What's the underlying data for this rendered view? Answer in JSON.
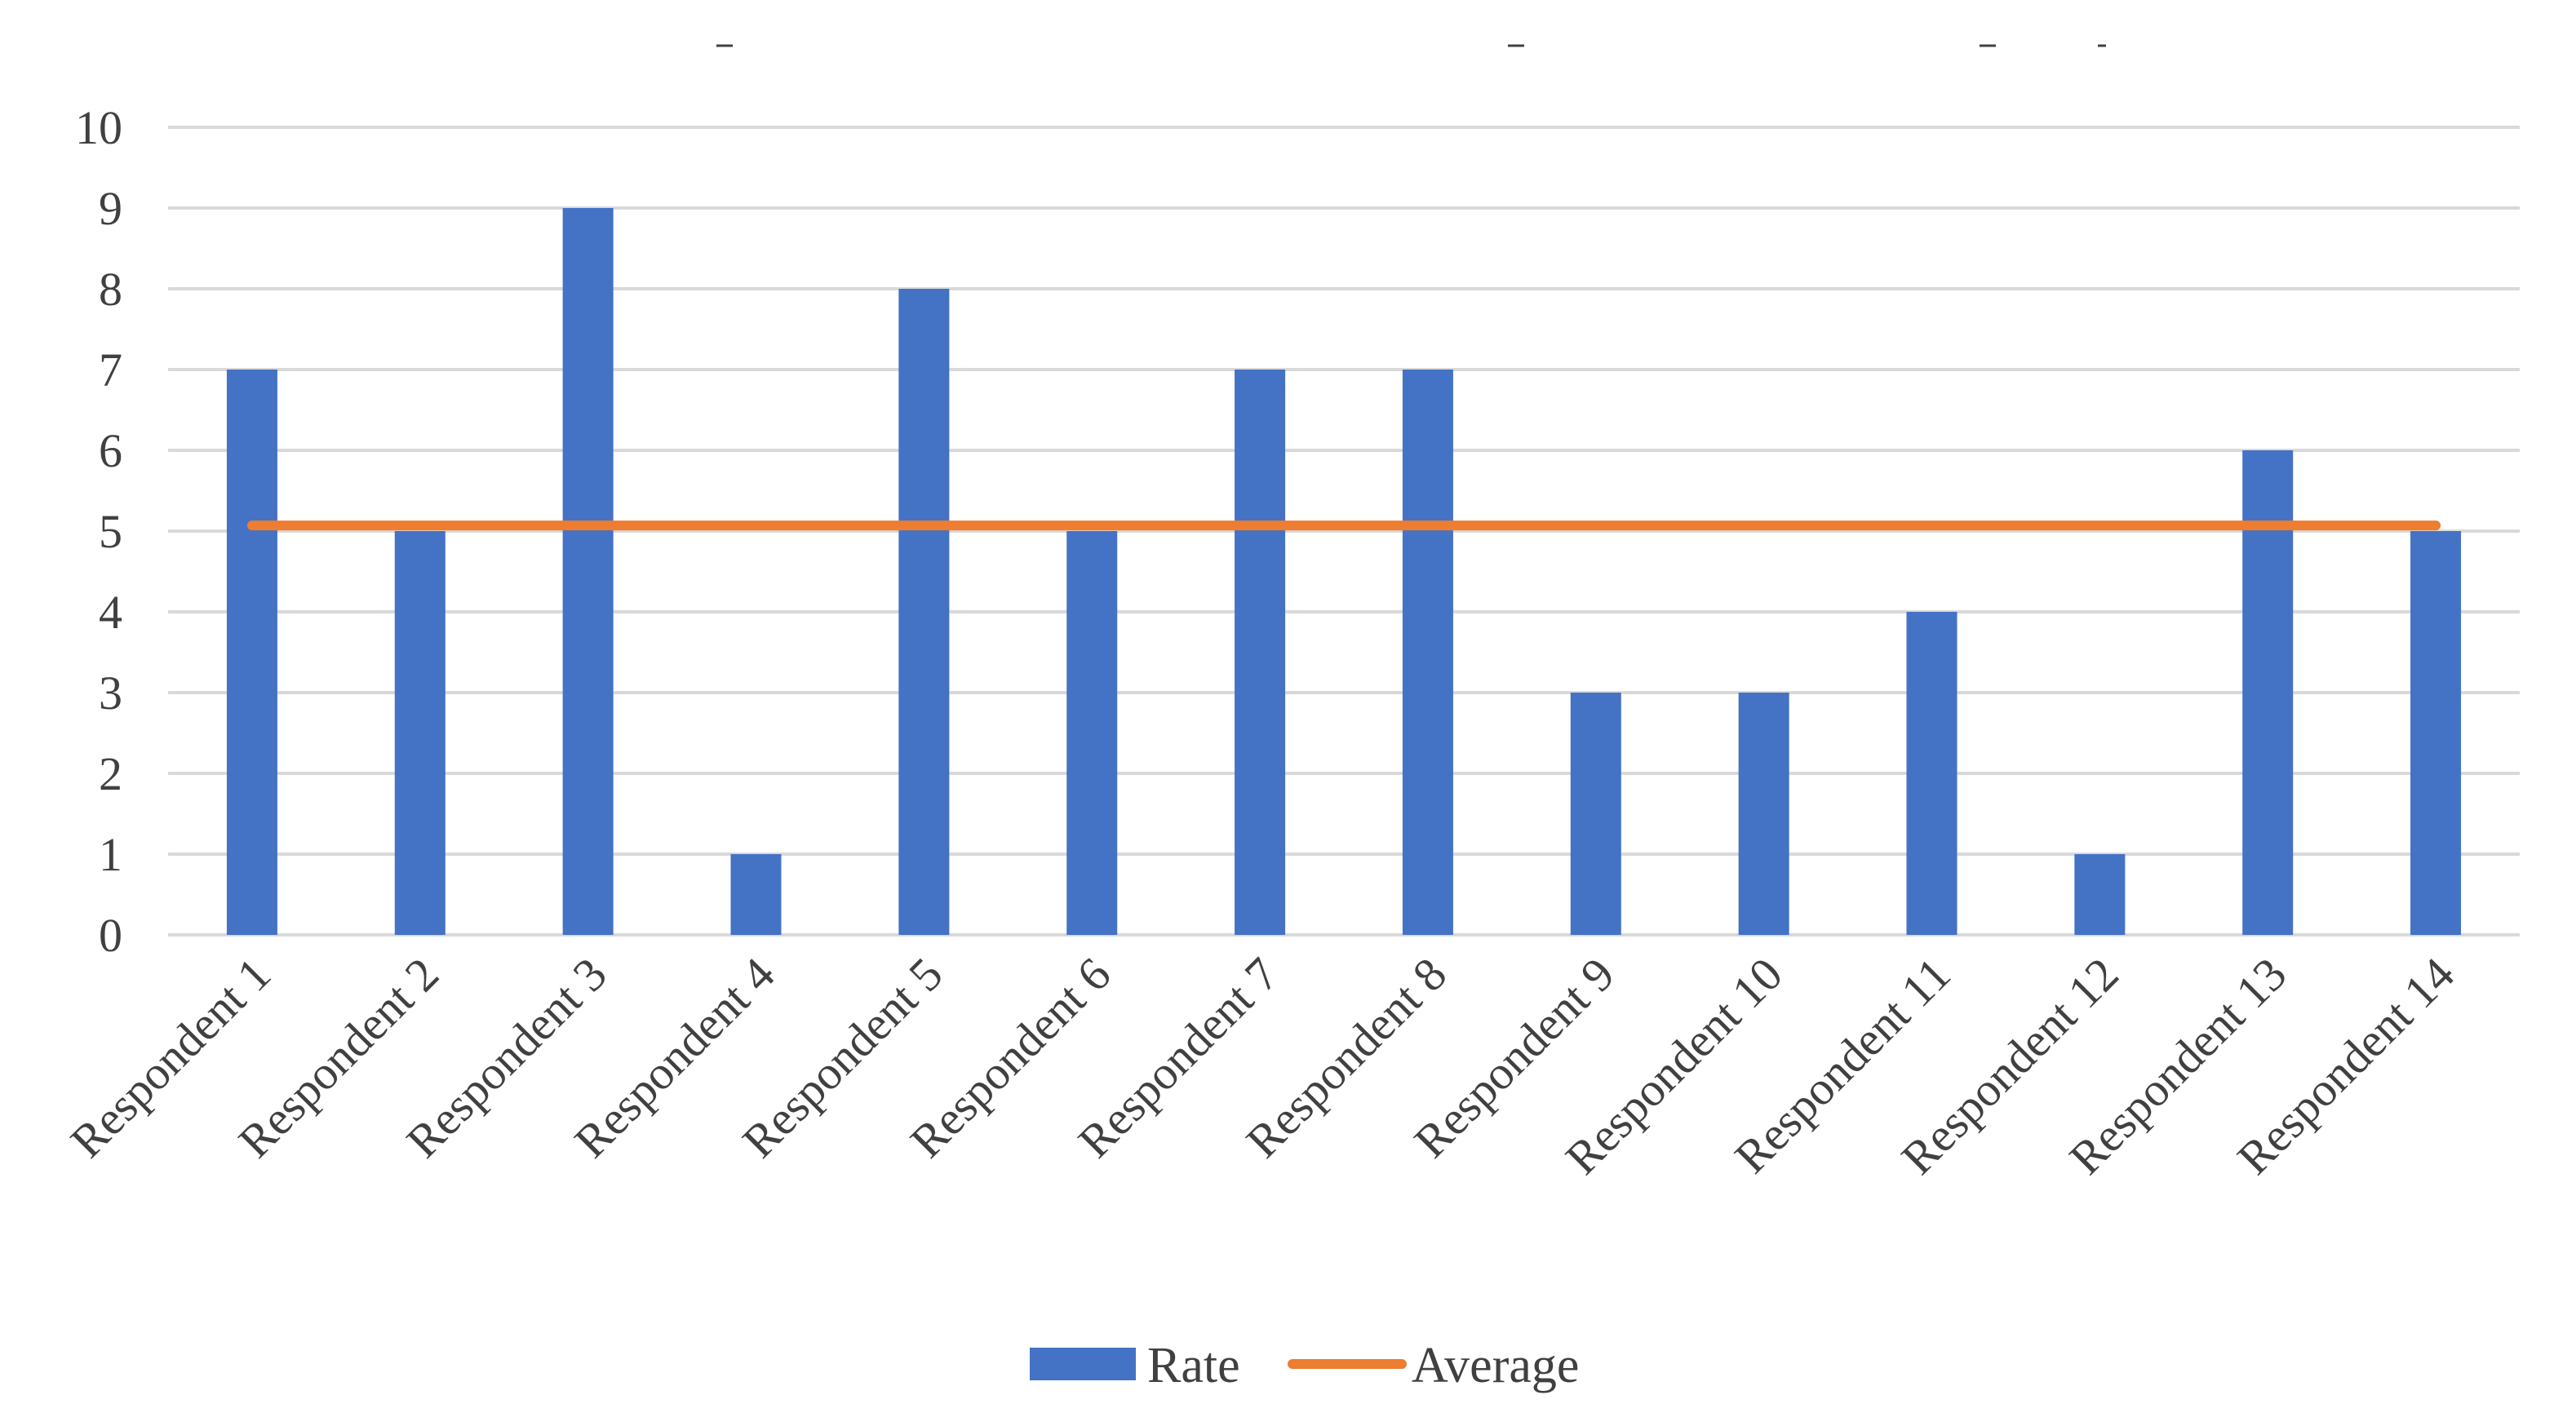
{
  "chart_data": {
    "type": "bar",
    "categories": [
      "Respondent 1",
      "Respondent 2",
      "Respondent 3",
      "Respondent 4",
      "Respondent 5",
      "Respondent 6",
      "Respondent 7",
      "Respondent 8",
      "Respondent 9",
      "Respondent 10",
      "Respondent 11",
      "Respondent 12",
      "Respondent 13",
      "Respondent 14"
    ],
    "series": [
      {
        "name": "Rate",
        "type": "bar",
        "color": "#4472C4",
        "values": [
          7,
          5,
          9,
          1,
          8,
          5,
          7,
          7,
          3,
          3,
          4,
          1,
          6,
          5
        ]
      },
      {
        "name": "Average",
        "type": "line",
        "color": "#ED7D31",
        "values": [
          5.07,
          5.07,
          5.07,
          5.07,
          5.07,
          5.07,
          5.07,
          5.07,
          5.07,
          5.07,
          5.07,
          5.07,
          5.07,
          5.07
        ]
      }
    ],
    "ylim": [
      0,
      10
    ],
    "yticks": [
      "0",
      "1",
      "2",
      "3",
      "4",
      "5",
      "6",
      "7",
      "8",
      "9",
      "10"
    ],
    "grid": true,
    "legend": "bottom-center"
  }
}
